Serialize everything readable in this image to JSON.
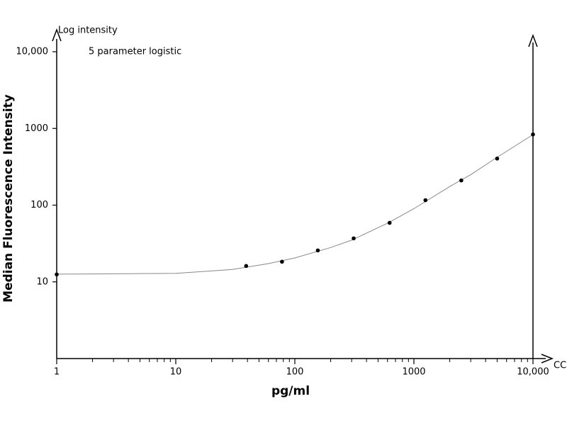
{
  "chart_data": {
    "type": "scatter",
    "title": "Log intensity",
    "annotation": "5 parameter logistic",
    "ylabel": "Median Fluorescence Intensity",
    "xlabel": "pg/ml",
    "xlabel_right": "CC",
    "log_x": true,
    "log_y": true,
    "xlim": [
      1,
      10000
    ],
    "ylim": [
      1,
      10000
    ],
    "xticks": [
      1,
      10,
      100,
      1000,
      {
        "value": 10000,
        "label": "10,000"
      }
    ],
    "xminorticks": [
      2,
      3,
      4,
      5,
      6,
      7,
      8,
      9,
      20,
      30,
      40,
      50,
      60,
      70,
      80,
      90,
      200,
      300,
      400,
      500,
      600,
      700,
      800,
      900,
      2000,
      3000,
      4000,
      5000,
      6000,
      7000,
      8000,
      9000
    ],
    "yticks": [
      10,
      100,
      1000,
      {
        "value": 10000,
        "label": "10,000"
      }
    ],
    "points": {
      "color": "#000000",
      "x": [
        1,
        39,
        78,
        156,
        312,
        625,
        1250,
        2500,
        5000,
        10000
      ],
      "y": [
        12.5,
        16.1,
        18.3,
        25.7,
        36.9,
        58.8,
        116,
        210,
        405,
        835
      ]
    },
    "fit": {
      "color": "#888888",
      "x": [
        1,
        10,
        30,
        60,
        100,
        200,
        300,
        600,
        1000,
        2000,
        3000,
        5000,
        10000
      ],
      "y": [
        12.6,
        12.9,
        14.5,
        17.3,
        20.5,
        28,
        35,
        58,
        90,
        175,
        250,
        420,
        830
      ]
    }
  }
}
